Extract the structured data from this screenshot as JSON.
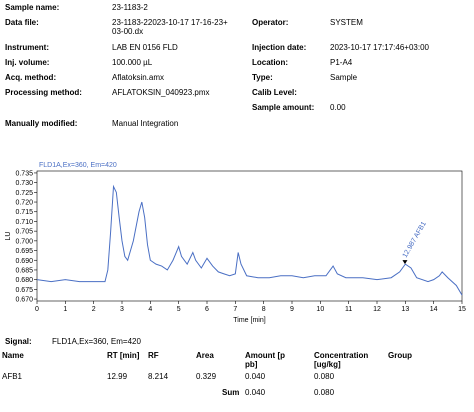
{
  "header": {
    "fields": [
      {
        "label": "Sample name:",
        "value": "23-1183-2"
      },
      {
        "label": "Data file:",
        "value": "23-1183-22023-10-17 17-16-23+03-00.dx"
      },
      {
        "label": "Operator:",
        "value": "SYSTEM"
      },
      {
        "label": "Instrument:",
        "value": "LAB EN 0156 FLD"
      },
      {
        "label": "Injection date:",
        "value": "2023-10-17 17:17:46+03:00"
      },
      {
        "label": "Inj. volume:",
        "value": "100.000 µL"
      },
      {
        "label": "Location:",
        "value": "P1-A4"
      },
      {
        "label": "Acq. method:",
        "value": "Aflatoksin.amx"
      },
      {
        "label": "Type:",
        "value": "Sample"
      },
      {
        "label": "Processing method:",
        "value": "AFLATOKSIN_040923.pmx"
      },
      {
        "label": "Calib Level:"
      },
      {
        "label": "Sample amount:",
        "value": "0.00"
      },
      {
        "label": "Manually modified:",
        "value": "Manual Integration"
      }
    ]
  },
  "chart_data": {
    "type": "line",
    "title": "FLD1A,Ex=360, Em=420",
    "x_label": "Time [min]",
    "y_label": "LU",
    "x": [
      0,
      0.5,
      1,
      1.5,
      2,
      2.4,
      2.5,
      2.6,
      2.7,
      2.8,
      2.9,
      3.0,
      3.1,
      3.2,
      3.4,
      3.6,
      3.7,
      3.8,
      3.9,
      4.0,
      4.2,
      4.4,
      4.6,
      4.8,
      5.0,
      5.1,
      5.3,
      5.5,
      5.6,
      5.8,
      6.0,
      6.2,
      6.4,
      6.6,
      6.8,
      7.0,
      7.1,
      7.2,
      7.4,
      7.8,
      8.2,
      8.6,
      9.0,
      9.4,
      9.8,
      10.2,
      10.45,
      10.6,
      10.9,
      11.5,
      12.0,
      12.5,
      12.8,
      13.0,
      13.2,
      13.4,
      13.8,
      14.0,
      14.2,
      14.3,
      14.5,
      14.8,
      15
    ],
    "series": [
      {
        "color": "#4a6fc4",
        "values": [
          0.68,
          0.679,
          0.68,
          0.679,
          0.679,
          0.679,
          0.685,
          0.705,
          0.728,
          0.725,
          0.712,
          0.7,
          0.692,
          0.69,
          0.7,
          0.715,
          0.72,
          0.712,
          0.698,
          0.69,
          0.688,
          0.687,
          0.685,
          0.69,
          0.697,
          0.692,
          0.688,
          0.694,
          0.69,
          0.686,
          0.691,
          0.687,
          0.684,
          0.683,
          0.682,
          0.683,
          0.694,
          0.688,
          0.682,
          0.681,
          0.681,
          0.682,
          0.682,
          0.681,
          0.682,
          0.682,
          0.687,
          0.683,
          0.681,
          0.681,
          0.68,
          0.681,
          0.684,
          0.688,
          0.686,
          0.681,
          0.679,
          0.68,
          0.682,
          0.684,
          0.681,
          0.677,
          0.672
        ]
      }
    ],
    "xlim": [
      0,
      15
    ],
    "xticks": [
      0,
      1,
      2,
      3,
      4,
      5,
      6,
      7,
      8,
      9,
      10,
      11,
      12,
      13,
      14,
      15
    ],
    "ylim": [
      0.669,
      0.736
    ],
    "yticks": [
      {
        "value": 0.67,
        "label": "0.670"
      },
      {
        "value": 0.675,
        "label": "0.675"
      },
      {
        "value": 0.68,
        "label": "0.680"
      },
      {
        "value": 0.685,
        "label": "0.685"
      },
      {
        "value": 0.69,
        "label": "0.690"
      },
      {
        "value": 0.695,
        "label": "0.695"
      },
      {
        "value": 0.7,
        "label": "0.700"
      },
      {
        "value": 0.705,
        "label": "0.705"
      },
      {
        "value": 0.71,
        "label": "0.710"
      },
      {
        "value": 0.715,
        "label": "0.715"
      },
      {
        "value": 0.72,
        "label": "0.720"
      },
      {
        "value": 0.725,
        "label": "0.725"
      },
      {
        "value": 0.73,
        "label": "0.730"
      },
      {
        "value": 0.735,
        "label": "0.735"
      }
    ],
    "grid": false,
    "annotations": [
      {
        "label": "12.987 AFB1",
        "x": 12.987,
        "y": 0.688
      }
    ]
  },
  "results": {
    "signal_label": "Signal:",
    "signal": "FLD1A,Ex=360, Em=420",
    "columns": [
      "Name",
      "RT [min]",
      "RF",
      "Area",
      "Amount [ppb]",
      "Concentration [ug/kg]",
      "Group"
    ],
    "rows": [
      [
        "AFB1",
        "12.99",
        "8.214",
        "0.329",
        "0.040",
        "0.080"
      ]
    ],
    "sum": {
      "label": "Sum",
      "amount": "0.040",
      "concentration": "0.080"
    }
  }
}
